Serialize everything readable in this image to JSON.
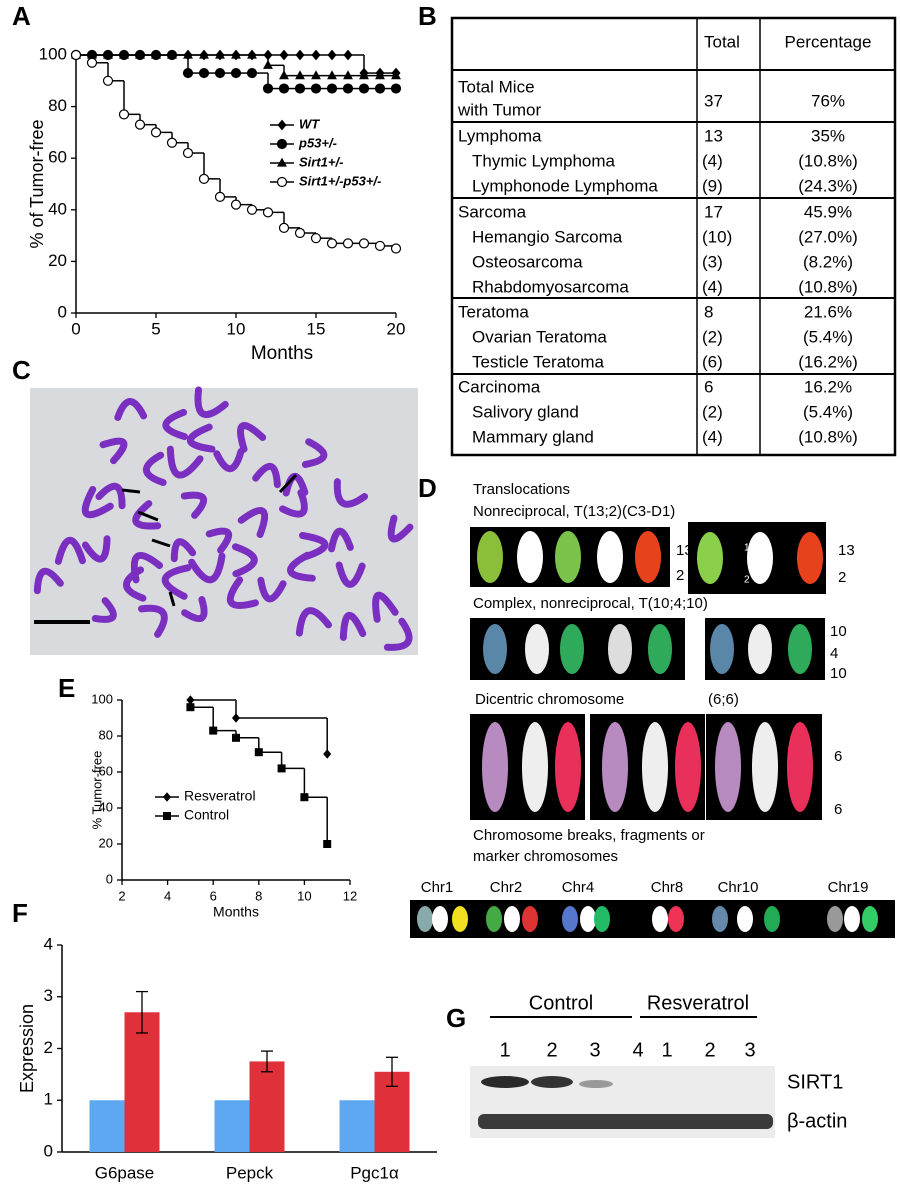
{
  "panel_labels": [
    "A",
    "B",
    "C",
    "D",
    "E",
    "F",
    "G"
  ],
  "chart_data": [
    {
      "type": "line",
      "step": true,
      "xlabel": "Months",
      "ylabel": "% of Tumor-free",
      "x": [
        0,
        1,
        2,
        3,
        4,
        5,
        6,
        7,
        8,
        9,
        10,
        11,
        12,
        13,
        14,
        15,
        16,
        17,
        18,
        19,
        20
      ],
      "xlim": [
        0,
        20
      ],
      "xticks": [
        0,
        5,
        10,
        15,
        20
      ],
      "ylim": [
        0,
        100
      ],
      "yticks": [
        0,
        20,
        40,
        60,
        80,
        100
      ],
      "legend": "right",
      "series": [
        {
          "name": "WT",
          "color": "#000000",
          "marker": "diamond",
          "values": [
            100,
            100,
            100,
            100,
            100,
            100,
            100,
            100,
            100,
            100,
            100,
            100,
            100,
            100,
            100,
            100,
            100,
            100,
            93,
            93,
            93
          ]
        },
        {
          "name": "p53+/-",
          "color": "#000000",
          "marker": "circle",
          "values": [
            100,
            100,
            100,
            100,
            100,
            100,
            100,
            93,
            93,
            93,
            93,
            93,
            87,
            87,
            87,
            87,
            87,
            87,
            87,
            87,
            87
          ]
        },
        {
          "name": "Sirt1+/-",
          "color": "#000000",
          "marker": "triangle",
          "values": [
            100,
            100,
            100,
            100,
            100,
            100,
            100,
            100,
            100,
            100,
            100,
            100,
            96,
            92,
            92,
            92,
            92,
            92,
            92,
            92,
            92
          ]
        },
        {
          "name": "Sirt1+/-p53+/-",
          "color": "#000000",
          "marker": "open-circle",
          "values": [
            100,
            97,
            90,
            77,
            73,
            70,
            66,
            62,
            52,
            45,
            42,
            40,
            39,
            33,
            31,
            29,
            27,
            27,
            27,
            26,
            25
          ]
        }
      ]
    },
    {
      "type": "line",
      "step": true,
      "xlabel": "Months",
      "ylabel": "% Tumor-free",
      "xlim": [
        2,
        12
      ],
      "xticks": [
        2,
        4,
        6,
        8,
        10,
        12
      ],
      "ylim": [
        0,
        100
      ],
      "yticks": [
        0,
        20,
        40,
        60,
        80,
        100
      ],
      "legend": "lower left",
      "series": [
        {
          "name": "Resveratrol",
          "color": "#000000",
          "marker": "diamond",
          "x": [
            5,
            7,
            11
          ],
          "values": [
            100,
            90,
            70
          ]
        },
        {
          "name": "Control",
          "color": "#000000",
          "marker": "square",
          "x": [
            5,
            6,
            7,
            8,
            9,
            10,
            11
          ],
          "values": [
            96,
            83,
            79,
            71,
            62,
            46,
            20
          ]
        }
      ]
    },
    {
      "type": "bar",
      "ylabel": "Expression",
      "categories": [
        "G6pase",
        "Pepck",
        "Pgc1α"
      ],
      "ylim": [
        0,
        4
      ],
      "yticks": [
        0,
        1,
        2,
        3,
        4
      ],
      "series": [
        {
          "color": "#5ea8f2",
          "values": [
            1,
            1,
            1
          ]
        },
        {
          "color": "#e0303a",
          "values": [
            2.7,
            1.75,
            1.55
          ],
          "errors": [
            0.4,
            0.2,
            0.28
          ]
        }
      ]
    }
  ],
  "table": {
    "header": [
      "Total",
      "Percentage"
    ],
    "total_row": {
      "label": [
        "Total Mice",
        "with Tumor"
      ],
      "total": "37",
      "percentage": "76%"
    },
    "groups": [
      [
        [
          "Lymphoma",
          "13",
          "35%"
        ],
        [
          "Thymic Lymphoma",
          "(4)",
          "(10.8%)"
        ],
        [
          "Lymphonode Lymphoma",
          "(9)",
          "(24.3%)"
        ]
      ],
      [
        [
          "Sarcoma",
          "17",
          "45.9%"
        ],
        [
          "Hemangio Sarcoma",
          "(10)",
          "(27.0%)"
        ],
        [
          "Osteosarcoma",
          "(3)",
          "(8.2%)"
        ],
        [
          "Rhabdomyosarcoma",
          "(4)",
          "(10.8%)"
        ]
      ],
      [
        [
          "Teratoma",
          "8",
          "21.6%"
        ],
        [
          "Ovarian Teratoma",
          "(2)",
          "(5.4%)"
        ],
        [
          "Testicle Teratoma",
          "(6)",
          "(16.2%)"
        ]
      ],
      [
        [
          "Carcinoma",
          "6",
          "16.2%"
        ],
        [
          "Salivory gland",
          "(2)",
          "(5.4%)"
        ],
        [
          "Mammary gland",
          "(4)",
          "(10.8%)"
        ]
      ]
    ]
  },
  "karyotype": {
    "translocations": "Translocations",
    "nonreciprocal": "Nonreciprocal, T(13;2)(C3-D1)",
    "row1_labels": [
      "13",
      "2",
      "13",
      "2"
    ],
    "row1_inset_labels": [
      "13",
      "2"
    ],
    "complex": "Complex, nonreciprocal, T(10;4;10)",
    "row2_labels": [
      "10",
      "4",
      "10"
    ],
    "dicentric": "Dicentric chromosome",
    "dicentric_type": "(6;6)",
    "row3_labels": [
      "6",
      "6"
    ],
    "breaks": [
      "Chromosome breaks, fragments or",
      "marker chromosomes"
    ],
    "chromosomes": [
      "Chr1",
      "Chr2",
      "Chr4",
      "Chr8",
      "Chr10",
      "Chr19"
    ]
  },
  "blot": {
    "groups": [
      "Control",
      "Resveratrol"
    ],
    "control_lanes": [
      "1",
      "2",
      "3",
      "4"
    ],
    "resveratrol_lanes": [
      "1",
      "2",
      "3"
    ],
    "proteins": [
      "SIRT1",
      "β-actin"
    ]
  }
}
